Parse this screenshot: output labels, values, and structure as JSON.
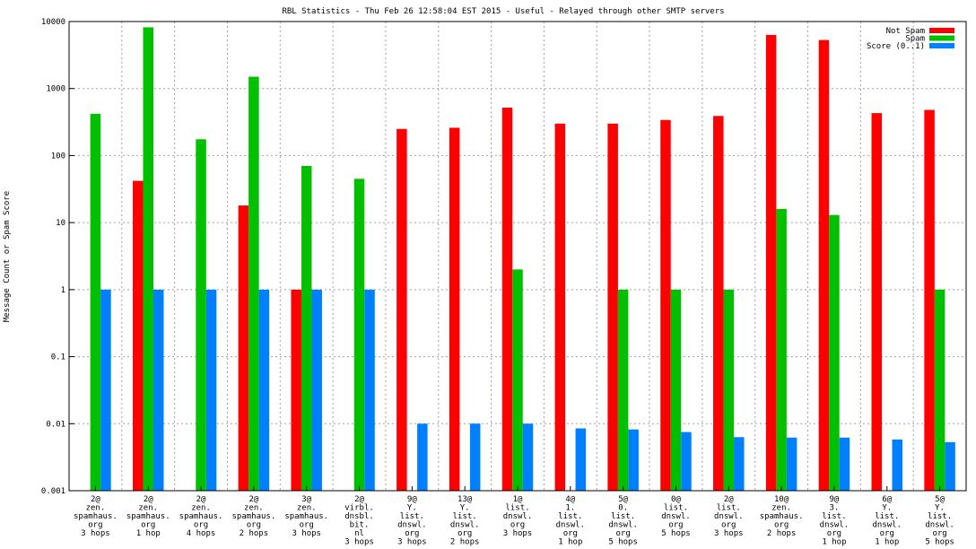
{
  "chart_data": {
    "type": "bar",
    "title": "RBL Statistics - Thu Feb 26 12:58:04 EST 2015 - Useful - Relayed through other SMTP servers",
    "xlabel": "",
    "ylabel": "Message Count or Spam Score",
    "yscale": "log",
    "ylim": [
      0.001,
      10000
    ],
    "yticks": [
      {
        "v": 10000,
        "label": "10000"
      },
      {
        "v": 1000,
        "label": "1000"
      },
      {
        "v": 100,
        "label": "100"
      },
      {
        "v": 10,
        "label": "10"
      },
      {
        "v": 1,
        "label": "1"
      },
      {
        "v": 0.1,
        "label": "0.1"
      },
      {
        "v": 0.01,
        "label": "0.01"
      },
      {
        "v": 0.001,
        "label": "0.001"
      }
    ],
    "grid": true,
    "legend": "top-right",
    "categories": [
      [
        "2@",
        "zen.",
        "spamhaus.",
        "org",
        "3 hops"
      ],
      [
        "2@",
        "zen.",
        "spamhaus.",
        "org",
        "1 hop"
      ],
      [
        "2@",
        "zen.",
        "spamhaus.",
        "org",
        "4 hops"
      ],
      [
        "2@",
        "zen.",
        "spamhaus.",
        "org",
        "2 hops"
      ],
      [
        "3@",
        "zen.",
        "spamhaus.",
        "org",
        "3 hops"
      ],
      [
        "2@",
        "virbl.",
        "dnsbl.",
        "bit.",
        "nl",
        "3 hops"
      ],
      [
        "9@",
        "Y.",
        "list.",
        "dnswl.",
        "org",
        "3 hops"
      ],
      [
        "13@",
        "Y.",
        "list.",
        "dnswl.",
        "org",
        "2 hops"
      ],
      [
        "1@",
        "list.",
        "dnswl.",
        "org",
        "3 hops"
      ],
      [
        "4@",
        "1.",
        "list.",
        "dnswl.",
        "org",
        "1 hop"
      ],
      [
        "5@",
        "0.",
        "list.",
        "dnswl.",
        "org",
        "5 hops"
      ],
      [
        "0@",
        "list.",
        "dnswl.",
        "org",
        "5 hops"
      ],
      [
        "2@",
        "list.",
        "dnswl.",
        "org",
        "3 hops"
      ],
      [
        "10@",
        "zen.",
        "spamhaus.",
        "org",
        "2 hops"
      ],
      [
        "9@",
        "3.",
        "list.",
        "dnswl.",
        "org",
        "1 hop"
      ],
      [
        "6@",
        "Y.",
        "list.",
        "dnswl.",
        "org",
        "1 hop"
      ],
      [
        "5@",
        "Y.",
        "list.",
        "dnswl.",
        "org",
        "5 hops"
      ]
    ],
    "series": [
      {
        "name": "Not Spam",
        "color": "#ff0000",
        "values": [
          0,
          42,
          0,
          18,
          1,
          0,
          250,
          260,
          520,
          300,
          300,
          340,
          390,
          6300,
          5300,
          430,
          480
        ]
      },
      {
        "name": "Spam",
        "color": "#00c000",
        "values": [
          420,
          8200,
          175,
          1500,
          70,
          45,
          0,
          0,
          2,
          0,
          1,
          1,
          1,
          16,
          13,
          0,
          1
        ]
      },
      {
        "name": "Score (0..1)",
        "color": "#0080ff",
        "values": [
          1,
          1,
          1,
          1,
          1,
          1,
          0.01,
          0.01,
          0.01,
          0.0085,
          0.0082,
          0.0075,
          0.0063,
          0.0062,
          0.0062,
          0.0058,
          0.0053
        ]
      }
    ]
  }
}
